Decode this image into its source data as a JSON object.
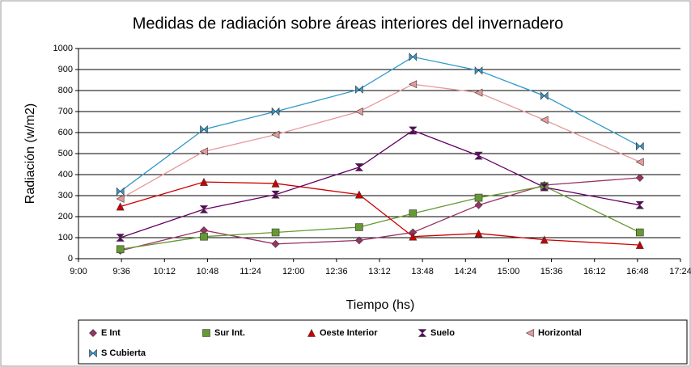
{
  "chart_data": {
    "type": "line",
    "title": "Medidas de radiación sobre áreas interiores del invernadero",
    "x_label": "Tiempo (hs)",
    "y_label": "Radiación (w/m2)",
    "x": [
      "9:35",
      "10:45",
      "11:45",
      "12:55",
      "13:40",
      "14:35",
      "15:30",
      "16:50"
    ],
    "xlim": [
      "9:00",
      "17:24"
    ],
    "xticks": [
      "9:00",
      "9:36",
      "10:12",
      "10:48",
      "11:24",
      "12:00",
      "12:36",
      "13:12",
      "13:48",
      "14:24",
      "15:00",
      "15:36",
      "16:12",
      "16:48",
      "17:24"
    ],
    "ylim": [
      0,
      1000
    ],
    "yticks": [
      0,
      100,
      200,
      300,
      400,
      500,
      600,
      700,
      800,
      900,
      1000
    ],
    "grid": true,
    "legend": "bottom",
    "series": [
      {
        "name": "E Int",
        "color": "#993366",
        "marker": "diamond",
        "values": [
          38,
          135,
          70,
          87,
          125,
          255,
          350,
          385
        ]
      },
      {
        "name": "Sur Int.",
        "color": "#669933",
        "marker": "square",
        "values": [
          45,
          105,
          125,
          150,
          215,
          290,
          345,
          125
        ]
      },
      {
        "name": "Oeste Interior",
        "color": "#cc0000",
        "marker": "triangle",
        "values": [
          248,
          365,
          358,
          305,
          105,
          120,
          90,
          65
        ]
      },
      {
        "name": "Suelo",
        "color": "#660066",
        "marker": "hourglass",
        "values": [
          100,
          235,
          305,
          435,
          610,
          490,
          340,
          255
        ]
      },
      {
        "name": "Horizontal",
        "color": "#e89a9a",
        "marker": "left-triangle",
        "values": [
          285,
          510,
          590,
          700,
          830,
          790,
          660,
          460
        ]
      },
      {
        "name": "S Cubierta",
        "color": "#3399cc",
        "marker": "bowtie",
        "values": [
          320,
          615,
          700,
          805,
          960,
          895,
          775,
          535
        ]
      }
    ]
  }
}
